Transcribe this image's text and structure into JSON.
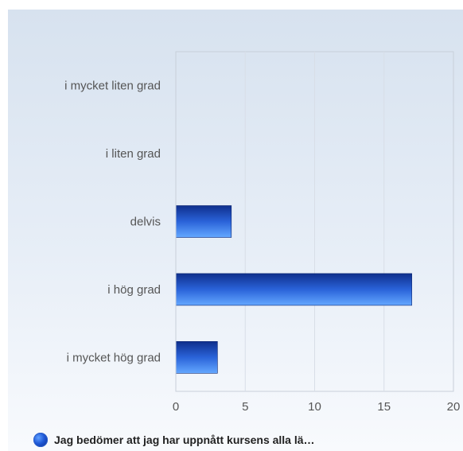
{
  "colors": {
    "bar_dark": "#0f2f8c",
    "bar_mid": "#2a63d9",
    "bar_light": "#64a8ff",
    "grid": "#d8dee7",
    "plot_border": "#c8cfd9",
    "text": "#555555"
  },
  "chart_data": {
    "type": "bar",
    "orientation": "horizontal",
    "categories": [
      "i mycket liten grad",
      "i liten grad",
      "delvis",
      "i hög grad",
      "i mycket hög grad"
    ],
    "series": [
      {
        "name": "Jag bedömer att jag har uppnått kursens alla lä…",
        "values": [
          0,
          0,
          4,
          17,
          3
        ]
      }
    ],
    "x_ticks": [
      0,
      5,
      10,
      15,
      20
    ],
    "xlim": [
      0,
      20
    ],
    "grid": true,
    "legend_position": "bottom-left"
  }
}
